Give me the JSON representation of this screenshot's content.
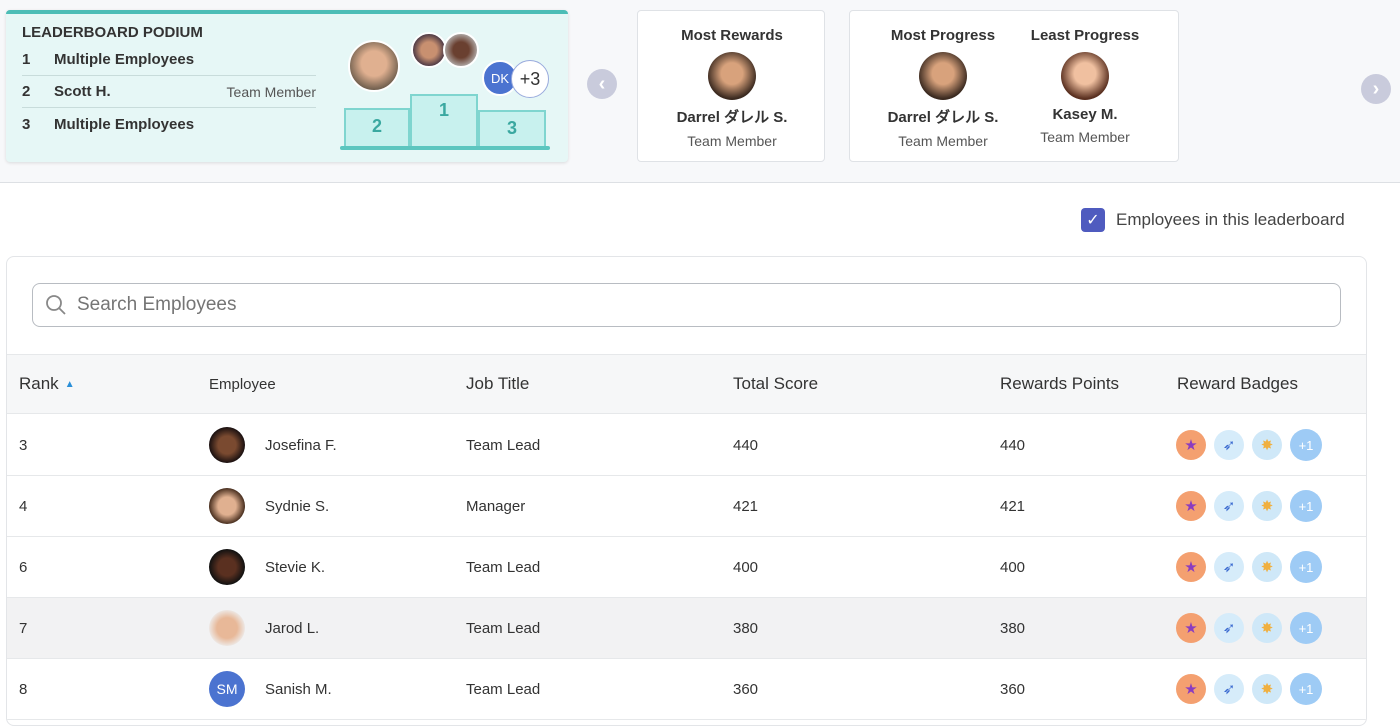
{
  "podium": {
    "title": "LEADERBOARD PODIUM",
    "rows": [
      {
        "rank": "1",
        "name": "Multiple Employees",
        "title": ""
      },
      {
        "rank": "2",
        "name": "Scott H.",
        "title": "Team Member"
      },
      {
        "rank": "3",
        "name": "Multiple Employees",
        "title": ""
      }
    ],
    "dk_initials": "DK",
    "more_count": "+3",
    "steps": [
      "2",
      "1",
      "3"
    ]
  },
  "highlights": [
    {
      "heading": "Most Rewards",
      "name": "Darrel ダレル S.",
      "title": "Team Member"
    },
    {
      "heading": "Most Progress",
      "name": "Darrel ダレル S.",
      "title": "Team Member"
    },
    {
      "heading": "Least Progress",
      "name": "Kasey M.",
      "title": "Team Member"
    }
  ],
  "filter": {
    "label": "Employees in this leaderboard",
    "checked": true
  },
  "search": {
    "placeholder": "Search Employees"
  },
  "table": {
    "headers": [
      "Rank",
      "Employee",
      "Job Title",
      "Total Score",
      "Rewards Points",
      "Reward Badges"
    ],
    "rows": [
      {
        "rank": "3",
        "employee": "Josefina F.",
        "initials": "",
        "job": "Team Lead",
        "score": "440",
        "points": "440",
        "more": "+1"
      },
      {
        "rank": "4",
        "employee": "Sydnie S.",
        "initials": "",
        "job": "Manager",
        "score": "421",
        "points": "421",
        "more": "+1"
      },
      {
        "rank": "6",
        "employee": "Stevie K.",
        "initials": "",
        "job": "Team Lead",
        "score": "400",
        "points": "400",
        "more": "+1"
      },
      {
        "rank": "7",
        "employee": "Jarod L.",
        "initials": "",
        "job": "Team Lead",
        "score": "380",
        "points": "380",
        "more": "+1"
      },
      {
        "rank": "8",
        "employee": "Sanish M.",
        "initials": "SM",
        "job": "Team Lead",
        "score": "360",
        "points": "360",
        "more": "+1"
      }
    ]
  }
}
